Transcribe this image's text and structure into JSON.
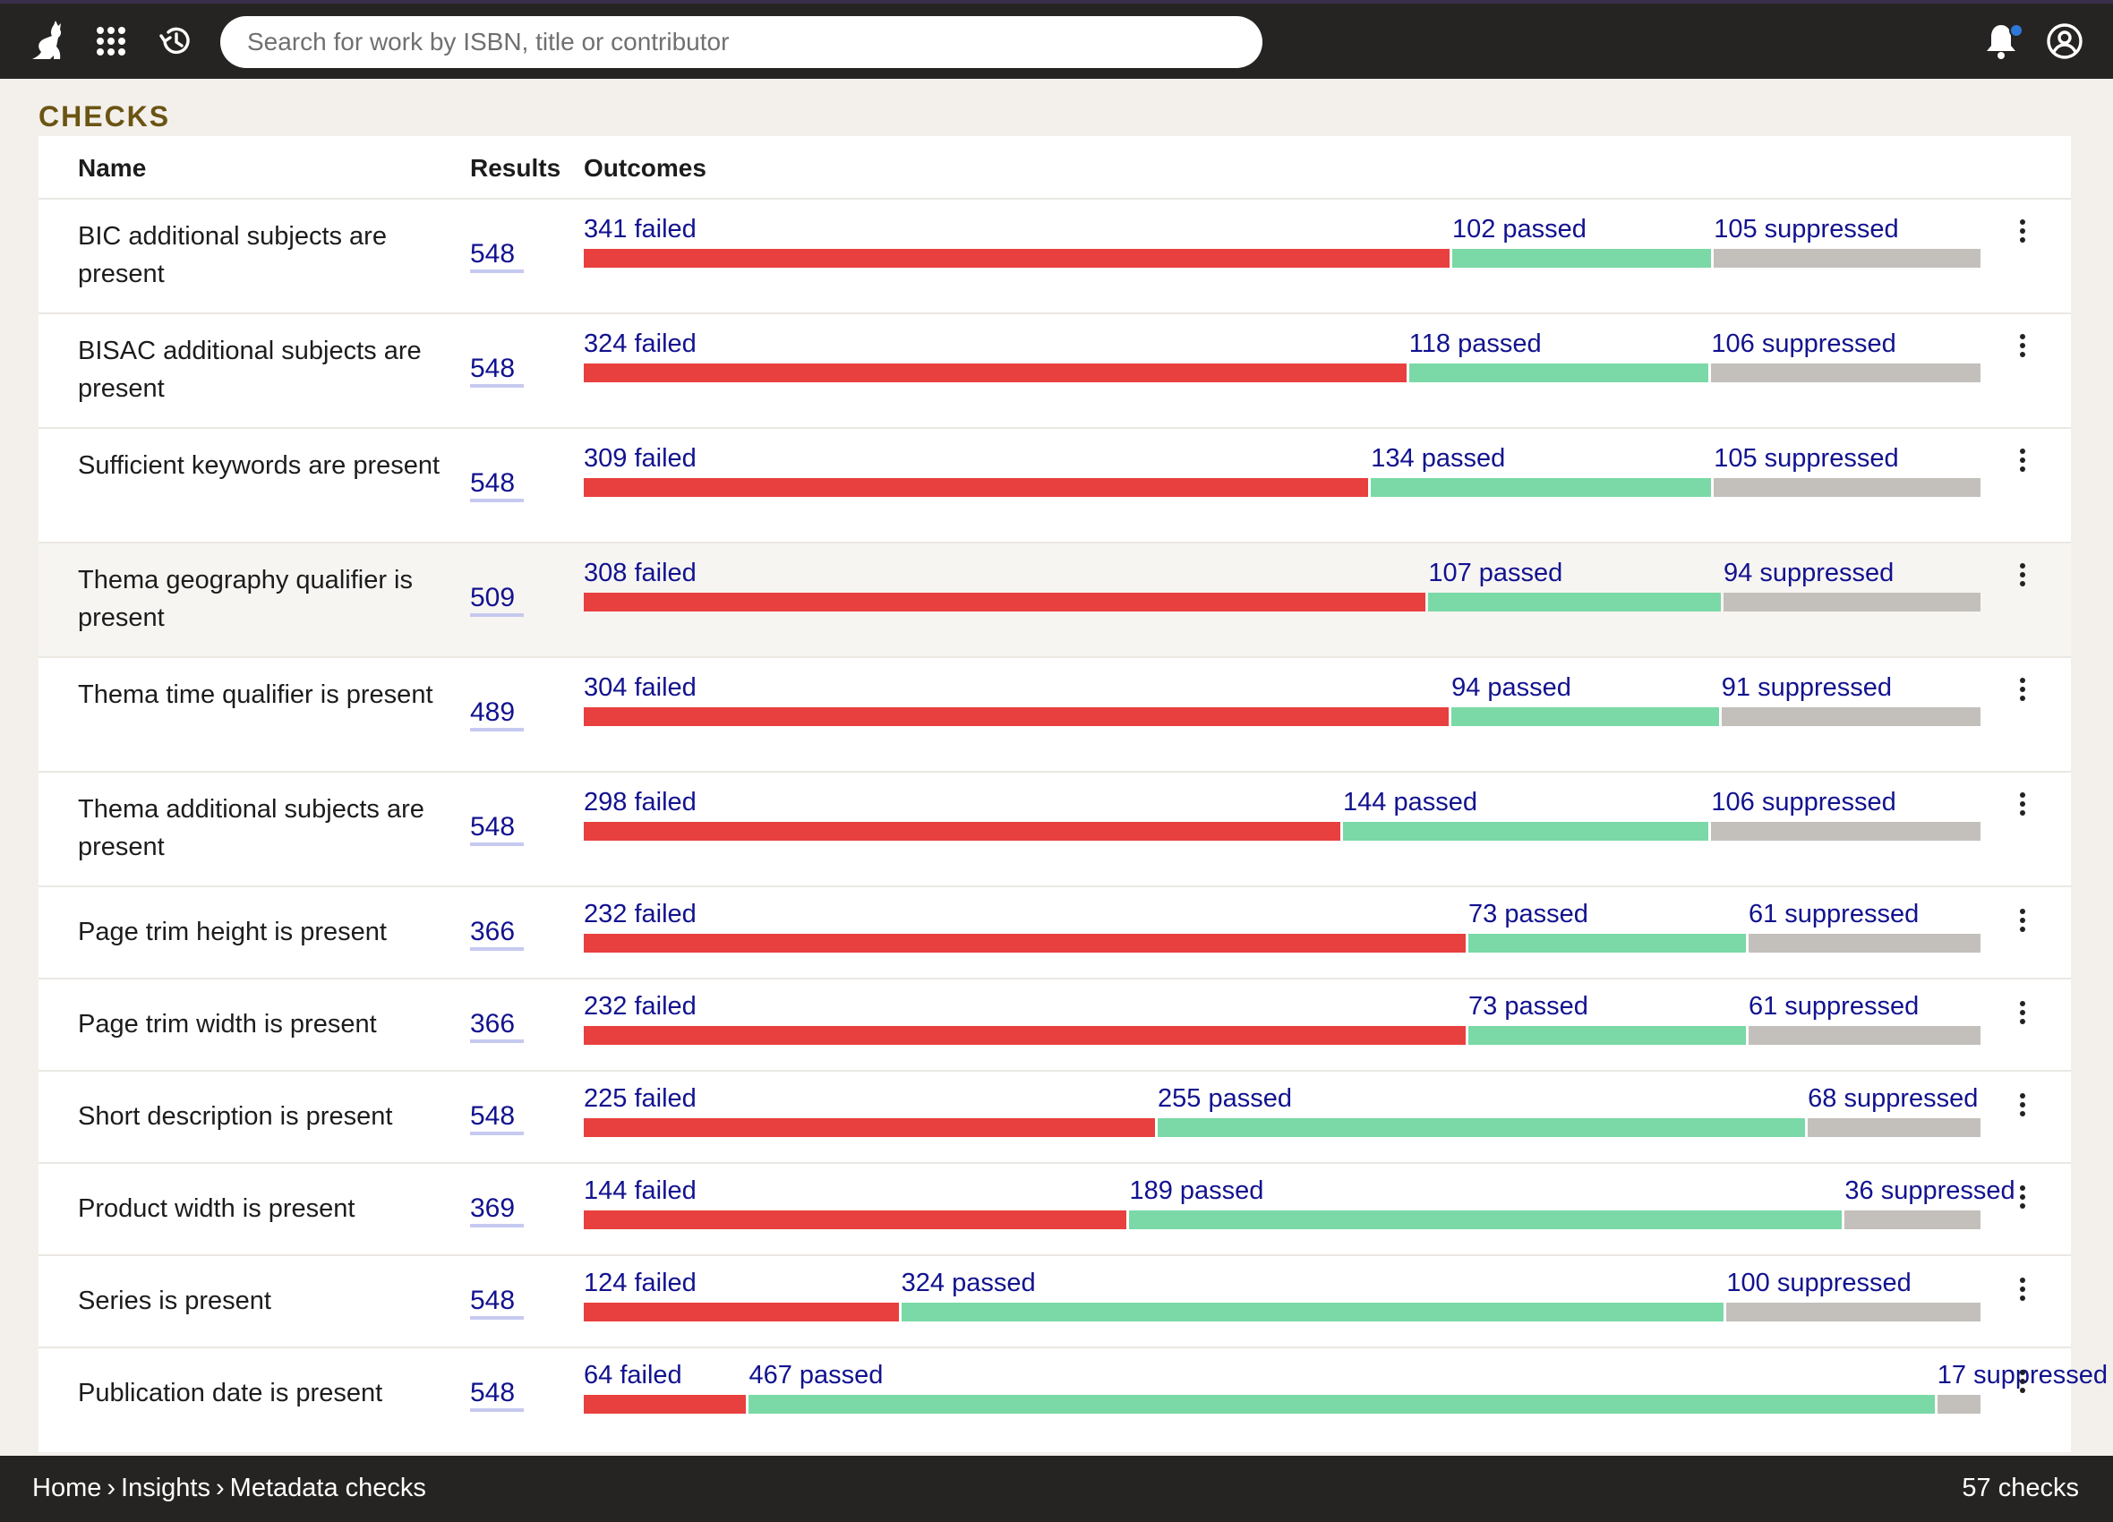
{
  "app": {
    "search_placeholder": "Search for work by ISBN, title or contributor",
    "icons": [
      "cat-logo-icon",
      "apps-grid-icon",
      "history-icon",
      "bell-icon",
      "account-icon"
    ],
    "notification_dot_color": "#2f78d8"
  },
  "section_title": "CHECKS",
  "table": {
    "headers": {
      "name": "Name",
      "results": "Results",
      "outcomes": "Outcomes"
    },
    "colors": {
      "failed": "#e8403e",
      "passed": "#7ad9a6",
      "suppressed": "#c3bfbb",
      "link": "#12128f"
    },
    "rows": [
      {
        "name": "BIC additional subjects are present",
        "results": "548",
        "failed": 341,
        "passed": 102,
        "suppressed": 105,
        "failed_label": "341 failed",
        "passed_label": "102 passed",
        "suppressed_label": "105 suppressed"
      },
      {
        "name": "BISAC additional subjects are present",
        "results": "548",
        "failed": 324,
        "passed": 118,
        "suppressed": 106,
        "failed_label": "324 failed",
        "passed_label": "118 passed",
        "suppressed_label": "106 suppressed"
      },
      {
        "name": "Sufficient keywords are present",
        "results": "548",
        "failed": 309,
        "passed": 134,
        "suppressed": 105,
        "failed_label": "309 failed",
        "passed_label": "134 passed",
        "suppressed_label": "105 suppressed"
      },
      {
        "name": "Thema geography qualifier is present",
        "results": "509",
        "failed": 308,
        "passed": 107,
        "suppressed": 94,
        "failed_label": "308 failed",
        "passed_label": "107 passed",
        "suppressed_label": "94 suppressed"
      },
      {
        "name": "Thema time qualifier is present",
        "results": "489",
        "failed": 304,
        "passed": 94,
        "suppressed": 91,
        "failed_label": "304 failed",
        "passed_label": "94 passed",
        "suppressed_label": "91 suppressed"
      },
      {
        "name": "Thema additional subjects are present",
        "results": "548",
        "failed": 298,
        "passed": 144,
        "suppressed": 106,
        "failed_label": "298 failed",
        "passed_label": "144 passed",
        "suppressed_label": "106 suppressed"
      },
      {
        "name": "Page trim height is present",
        "results": "366",
        "failed": 232,
        "passed": 73,
        "suppressed": 61,
        "failed_label": "232 failed",
        "passed_label": "73 passed",
        "suppressed_label": "61 suppressed"
      },
      {
        "name": "Page trim width is present",
        "results": "366",
        "failed": 232,
        "passed": 73,
        "suppressed": 61,
        "failed_label": "232 failed",
        "passed_label": "73 passed",
        "suppressed_label": "61 suppressed"
      },
      {
        "name": "Short description is present",
        "results": "548",
        "failed": 225,
        "passed": 255,
        "suppressed": 68,
        "failed_label": "225 failed",
        "passed_label": "255 passed",
        "suppressed_label": "68 suppressed"
      },
      {
        "name": "Product width is present",
        "results": "369",
        "failed": 144,
        "passed": 189,
        "suppressed": 36,
        "failed_label": "144 failed",
        "passed_label": "189 passed",
        "suppressed_label": "36 suppressed"
      },
      {
        "name": "Series is present",
        "results": "548",
        "failed": 124,
        "passed": 324,
        "suppressed": 100,
        "failed_label": "124 failed",
        "passed_label": "324 passed",
        "suppressed_label": "100 suppressed"
      },
      {
        "name": "Publication date is present",
        "results": "548",
        "failed": 64,
        "passed": 467,
        "suppressed": 17,
        "failed_label": "64 failed",
        "passed_label": "467 passed",
        "suppressed_label": "17 suppressed"
      }
    ]
  },
  "footer": {
    "breadcrumb": [
      "Home",
      "Insights",
      "Metadata checks"
    ],
    "separator": "›",
    "count": "57 checks"
  }
}
